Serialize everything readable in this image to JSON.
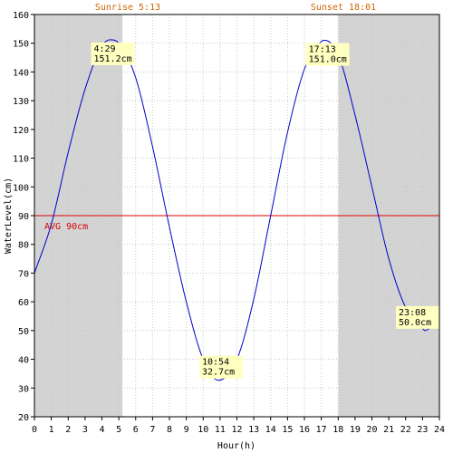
{
  "chart_data": {
    "type": "line",
    "xlabel": "Hour(h)",
    "ylabel": "WaterLevel(cm)",
    "xlim": [
      0,
      24
    ],
    "ylim": [
      20,
      160
    ],
    "x_ticks": [
      0,
      1,
      2,
      3,
      4,
      5,
      6,
      7,
      8,
      9,
      10,
      11,
      12,
      13,
      14,
      15,
      16,
      17,
      18,
      19,
      20,
      21,
      22,
      23,
      24
    ],
    "y_ticks": [
      20,
      30,
      40,
      50,
      60,
      70,
      80,
      90,
      100,
      110,
      120,
      130,
      140,
      150,
      160
    ],
    "grid": true,
    "sunrise": {
      "label": "Sunrise 5:13",
      "hour": 5.2167
    },
    "sunset": {
      "label": "Sunset 18:01",
      "hour": 18.0167
    },
    "average": {
      "label": "AVG 90cm",
      "value": 90
    },
    "extremes": [
      {
        "time": "4:29",
        "level": "151.2cm",
        "hour": 4.4833,
        "value": 151.2
      },
      {
        "time": "10:54",
        "level": "32.7cm",
        "hour": 10.9,
        "value": 32.7
      },
      {
        "time": "17:13",
        "level": "151.0cm",
        "hour": 17.2167,
        "value": 151.0
      },
      {
        "time": "23:08",
        "level": "50.0cm",
        "hour": 23.1333,
        "value": 50.0
      }
    ],
    "series": [
      {
        "values_x": [
          0,
          1,
          2,
          3,
          4,
          4.4833,
          5,
          6,
          7,
          8,
          9,
          10,
          10.9,
          12,
          13,
          14,
          15,
          16,
          17,
          17.2167,
          18,
          19,
          20,
          21,
          22,
          23,
          23.1333,
          24
        ],
        "values_y": [
          70,
          87,
          112,
          134,
          149,
          151.2,
          150,
          138,
          114,
          86,
          60,
          40,
          32.7,
          40,
          61,
          90,
          119,
          141,
          150.6,
          151.0,
          146,
          125,
          100,
          75,
          58,
          51,
          50.0,
          55
        ]
      }
    ],
    "colors": {
      "line": "#0000cc",
      "avg_line": "#dd0000",
      "night_shade": "#d3d3d3",
      "grid": "#c8c8c8",
      "label_box": "#ffffc0",
      "sun_text": "#cc6600"
    }
  }
}
